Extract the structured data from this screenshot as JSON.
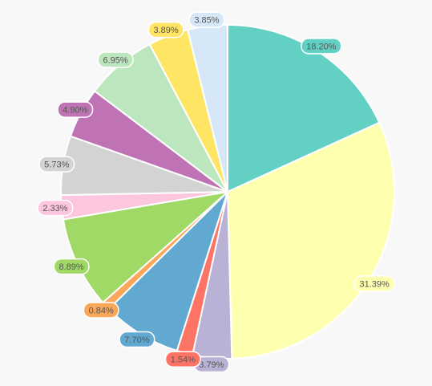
{
  "chart_data": {
    "type": "pie",
    "slices": [
      {
        "label": "18.20%",
        "value": 18.2,
        "color": "#63d0c4"
      },
      {
        "label": "31.39%",
        "value": 31.39,
        "color": "#ffffb0"
      },
      {
        "label": "3.79%",
        "value": 3.79,
        "color": "#bab2d6"
      },
      {
        "label": "1.54%",
        "value": 1.54,
        "color": "#fd7465"
      },
      {
        "label": "7.70%",
        "value": 7.7,
        "color": "#62a9d1"
      },
      {
        "label": "0.84%",
        "value": 0.84,
        "color": "#f9a75b"
      },
      {
        "label": "8.89%",
        "value": 8.89,
        "color": "#a0d966"
      },
      {
        "label": "2.33%",
        "value": 2.33,
        "color": "#fbc6de"
      },
      {
        "label": "5.73%",
        "value": 5.73,
        "color": "#d3d3d3"
      },
      {
        "label": "4.90%",
        "value": 4.9,
        "color": "#bf73b4"
      },
      {
        "label": "6.95%",
        "value": 6.95,
        "color": "#bce6bd"
      },
      {
        "label": "3.89%",
        "value": 3.89,
        "color": "#ffe564"
      },
      {
        "label": "3.85%",
        "value": 3.85,
        "color": "#d6e8f8"
      }
    ],
    "start_angle": "top",
    "direction": "clockwise",
    "legend": "none"
  }
}
